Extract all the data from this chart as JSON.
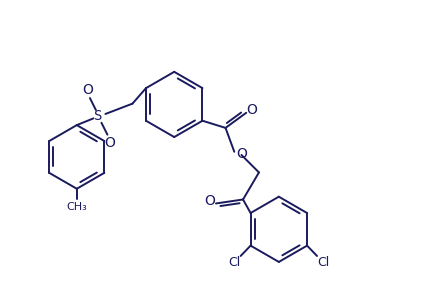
{
  "bg_color": "#ffffff",
  "line_color": "#1a1a5e",
  "line_width": 1.4,
  "figsize": [
    4.28,
    2.9
  ],
  "dpi": 100,
  "xlim": [
    0,
    10
  ],
  "ylim": [
    0,
    7
  ]
}
